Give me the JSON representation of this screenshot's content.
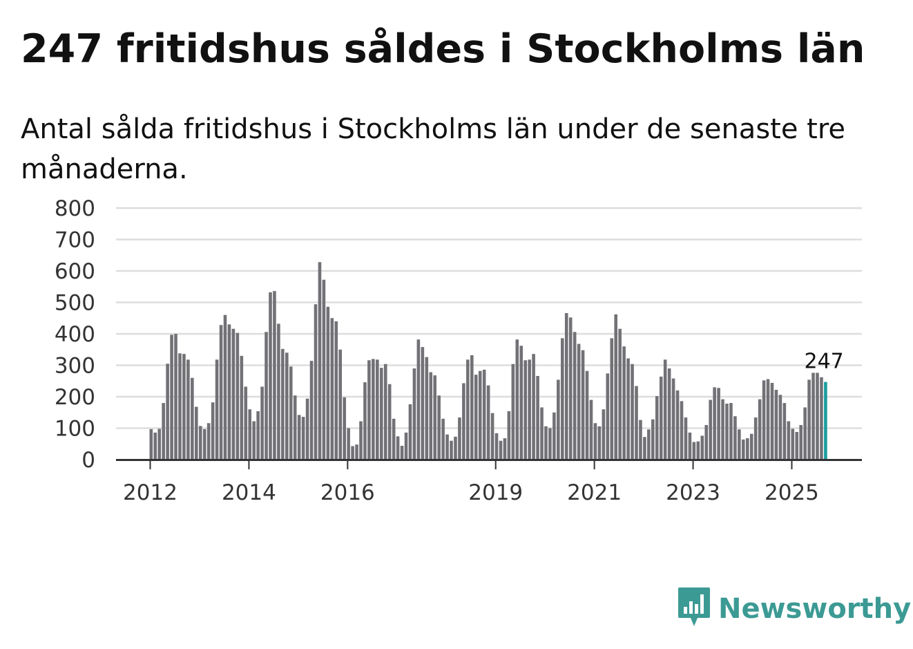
{
  "title": "247 fritidshus såldes i Stockholms län",
  "subtitle": "Antal sålda fritidshus i Stockholms län under de senaste tre månaderna.",
  "brand": {
    "name": "Newsworthy",
    "color": "#3c9a94",
    "icon": "newsworthy-chart-icon"
  },
  "colors": {
    "bar": "#727176",
    "highlight": "#1a9da0",
    "grid": "#dddddd",
    "axis": "#333333"
  },
  "chart_data": {
    "type": "bar",
    "ylim": [
      0,
      800
    ],
    "yticks": [
      "0",
      "100",
      "200",
      "300",
      "400",
      "500",
      "600",
      "700",
      "800"
    ],
    "xtick_labels": [
      {
        "label": "2012",
        "index": 0
      },
      {
        "label": "2014",
        "index": 24
      },
      {
        "label": "2016",
        "index": 48
      },
      {
        "label": "2019",
        "index": 84
      },
      {
        "label": "2021",
        "index": 108
      },
      {
        "label": "2023",
        "index": 132
      },
      {
        "label": "2025",
        "index": 156
      }
    ],
    "highlight_label": "247",
    "values": [
      97,
      86,
      98,
      180,
      305,
      397,
      400,
      338,
      336,
      318,
      260,
      168,
      107,
      97,
      116,
      182,
      318,
      428,
      460,
      430,
      416,
      403,
      330,
      232,
      160,
      122,
      154,
      232,
      406,
      532,
      536,
      432,
      352,
      340,
      296,
      204,
      142,
      136,
      194,
      314,
      494,
      628,
      572,
      486,
      450,
      440,
      350,
      198,
      100,
      43,
      48,
      122,
      246,
      316,
      320,
      318,
      292,
      304,
      240,
      130,
      74,
      44,
      86,
      176,
      290,
      382,
      358,
      326,
      278,
      268,
      204,
      130,
      80,
      60,
      73,
      134,
      243,
      318,
      332,
      270,
      282,
      286,
      236,
      148,
      84,
      60,
      68,
      154,
      304,
      382,
      362,
      316,
      318,
      336,
      266,
      166,
      106,
      100,
      150,
      254,
      386,
      466,
      452,
      406,
      368,
      348,
      282,
      190,
      116,
      106,
      160,
      274,
      386,
      462,
      416,
      360,
      322,
      304,
      234,
      126,
      72,
      96,
      128,
      202,
      264,
      318,
      290,
      258,
      220,
      186,
      134,
      86,
      56,
      58,
      76,
      110,
      190,
      230,
      228,
      192,
      178,
      180,
      138,
      96,
      64,
      68,
      82,
      134,
      192,
      252,
      256,
      244,
      222,
      206,
      180,
      122,
      98,
      88,
      110,
      166,
      254,
      276,
      276,
      262,
      247
    ]
  }
}
